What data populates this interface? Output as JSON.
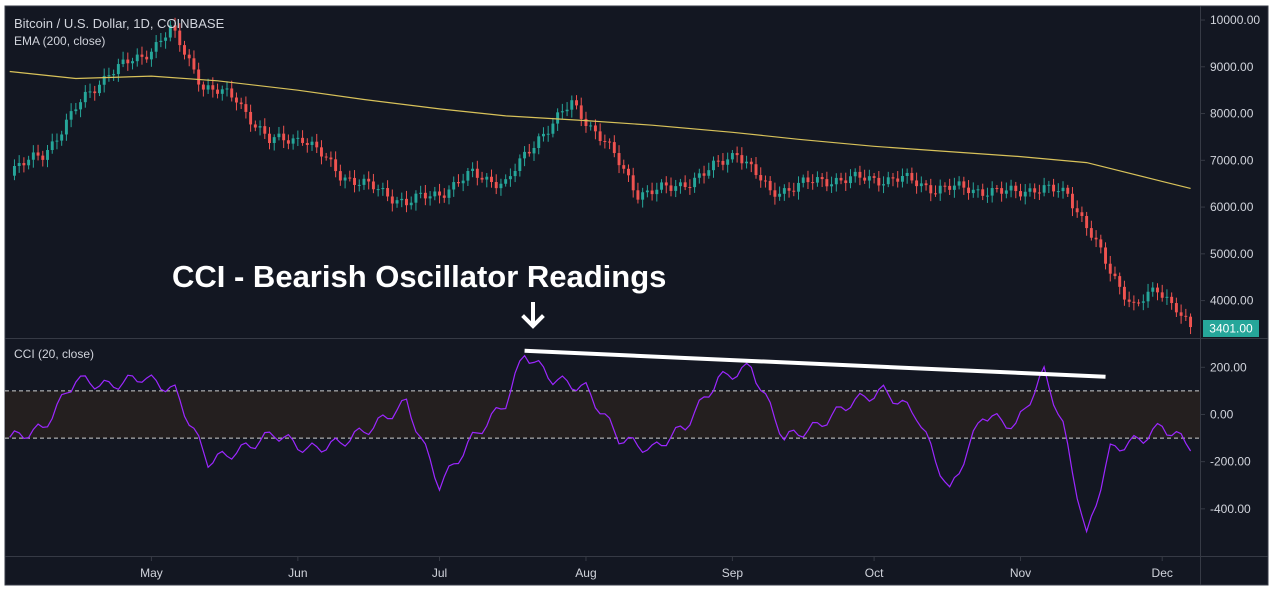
{
  "header": {
    "symbol_line": "Bitcoin / U.S. Dollar, 1D, COINBASE",
    "ema_label": "EMA (200, close)",
    "cci_label": "CCI (20, close)"
  },
  "annotation": {
    "title": "CCI - Bearish Oscillator Readings",
    "arrow_icon": "down-arrow-icon"
  },
  "colors": {
    "background": "#131722",
    "grid_border": "#363a45",
    "axis_text": "#d1d4dc",
    "up_candle": "#26a69a",
    "down_candle": "#ef5350",
    "ema_line": "#d8c25a",
    "cci_line": "#9c27ff",
    "cci_band": "#241f1f",
    "price_badge": "#26a69a",
    "trend_line": "#ffffff"
  },
  "chart_data": [
    {
      "type": "candlestick",
      "title": "Bitcoin / U.S. Dollar, 1D, COINBASE",
      "ylim": [
        3200,
        10300
      ],
      "yticks": [
        "10000.00",
        "9000.00",
        "8000.00",
        "7000.00",
        "6000.00",
        "5000.00",
        "4000.00"
      ],
      "last_price_label": "3401.00",
      "x_labels": [
        "May",
        "Jun",
        "Jul",
        "Aug",
        "Sep",
        "Oct",
        "Nov",
        "Dec"
      ],
      "close_series": {
        "x": [
          "2018-04-01",
          "2018-04-08",
          "2018-04-15",
          "2018-04-22",
          "2018-04-29",
          "2018-05-05",
          "2018-05-12",
          "2018-05-19",
          "2018-05-26",
          "2018-06-02",
          "2018-06-10",
          "2018-06-17",
          "2018-06-24",
          "2018-07-01",
          "2018-07-08",
          "2018-07-15",
          "2018-07-22",
          "2018-07-29",
          "2018-08-05",
          "2018-08-12",
          "2018-08-19",
          "2018-08-26",
          "2018-09-02",
          "2018-09-09",
          "2018-09-16",
          "2018-09-23",
          "2018-09-30",
          "2018-10-07",
          "2018-10-14",
          "2018-10-21",
          "2018-10-28",
          "2018-11-04",
          "2018-11-11",
          "2018-11-15",
          "2018-11-20",
          "2018-11-25",
          "2018-11-30",
          "2018-12-04",
          "2018-12-07"
        ],
        "values": [
          6800,
          7100,
          8100,
          8900,
          9200,
          9800,
          8600,
          8300,
          7400,
          7500,
          6700,
          6400,
          6100,
          6300,
          6700,
          6500,
          7500,
          8200,
          7400,
          6300,
          6400,
          6700,
          7200,
          6300,
          6500,
          6600,
          6600,
          6600,
          6400,
          6400,
          6300,
          6400,
          6300,
          5600,
          4600,
          3900,
          4200,
          3900,
          3400
        ]
      },
      "ema_200": {
        "name": "EMA (200, close)",
        "x": [
          "2018-04-01",
          "2018-04-15",
          "2018-05-01",
          "2018-05-15",
          "2018-06-01",
          "2018-06-15",
          "2018-07-01",
          "2018-07-15",
          "2018-08-01",
          "2018-08-15",
          "2018-09-01",
          "2018-09-15",
          "2018-10-01",
          "2018-10-15",
          "2018-11-01",
          "2018-11-15",
          "2018-12-01",
          "2018-12-07"
        ],
        "values": [
          8900,
          8750,
          8800,
          8700,
          8500,
          8300,
          8100,
          7950,
          7850,
          7750,
          7600,
          7450,
          7300,
          7200,
          7080,
          6950,
          6550,
          6400
        ]
      }
    },
    {
      "type": "line",
      "title": "CCI (20, close)",
      "ylim": [
        -600,
        320
      ],
      "yticks": [
        "200.00",
        "0.00",
        "-200.00",
        "-400.00"
      ],
      "bands": [
        100,
        -100
      ],
      "series": [
        {
          "name": "CCI (20, close)",
          "x": [
            "2018-04-01",
            "2018-04-08",
            "2018-04-15",
            "2018-04-22",
            "2018-04-29",
            "2018-05-06",
            "2018-05-13",
            "2018-05-20",
            "2018-05-27",
            "2018-06-03",
            "2018-06-10",
            "2018-06-17",
            "2018-06-24",
            "2018-07-01",
            "2018-07-08",
            "2018-07-15",
            "2018-07-19",
            "2018-07-25",
            "2018-08-01",
            "2018-08-08",
            "2018-08-15",
            "2018-08-22",
            "2018-08-29",
            "2018-09-05",
            "2018-09-12",
            "2018-09-19",
            "2018-09-26",
            "2018-10-03",
            "2018-10-10",
            "2018-10-17",
            "2018-10-24",
            "2018-10-31",
            "2018-11-06",
            "2018-11-10",
            "2018-11-15",
            "2018-11-20",
            "2018-11-27",
            "2018-12-01",
            "2018-12-07"
          ],
          "values": [
            -100,
            -60,
            150,
            120,
            160,
            100,
            -200,
            -150,
            -80,
            -150,
            -120,
            -50,
            50,
            -300,
            -100,
            50,
            260,
            150,
            110,
            -100,
            -150,
            -50,
            150,
            200,
            -100,
            -50,
            50,
            100,
            0,
            -330,
            0,
            -50,
            180,
            -50,
            -520,
            -150,
            -100,
            -50,
            -130
          ]
        }
      ],
      "trend_line": {
        "x": [
          "2018-07-19",
          "2018-11-19"
        ],
        "y": [
          270,
          160
        ]
      }
    }
  ]
}
